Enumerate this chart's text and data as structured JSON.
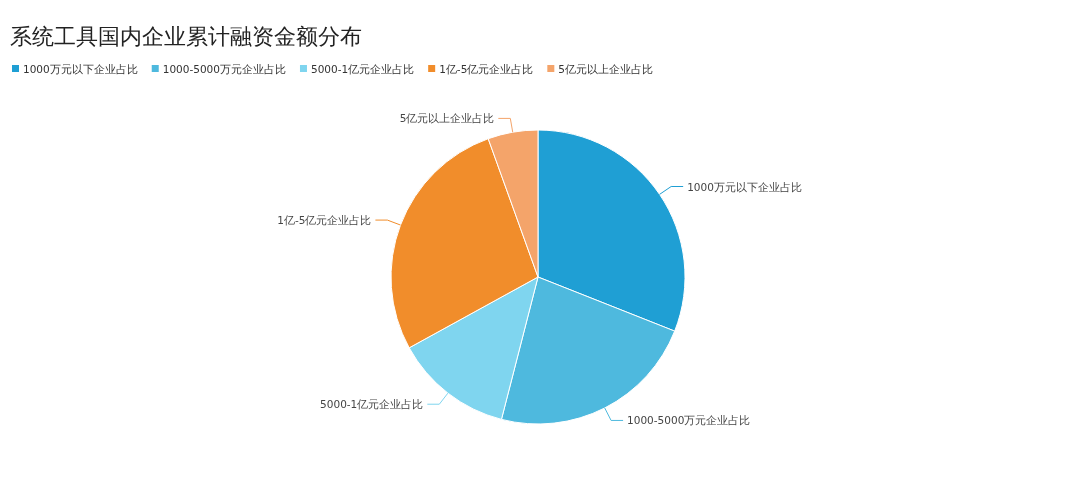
{
  "chart_data": {
    "type": "pie",
    "title": "系统工具国内企业累计融资金额分布",
    "categories": [
      "1000万元以下企业占比",
      "1000-5000万元企业占比",
      "5000-1亿元企业占比",
      "1亿-5亿元企业占比",
      "5亿元以上企业占比"
    ],
    "values": [
      31,
      23,
      13,
      27.5,
      5.5
    ],
    "colors": [
      "#1f9fd4",
      "#4eb9de",
      "#7fd5ef",
      "#f18d2b",
      "#f4a46a"
    ],
    "legend": "top left"
  }
}
